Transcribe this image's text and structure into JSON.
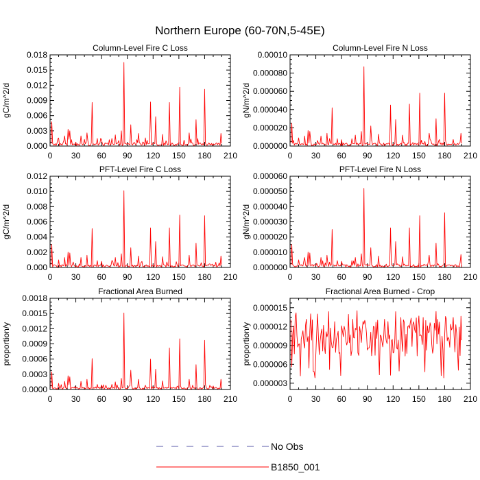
{
  "title": "Northern Europe (60-70N,5-45E)",
  "legend": [
    {
      "label": "No Obs",
      "color": "#5a5aa8",
      "style": "dashed"
    },
    {
      "label": "B1850_001",
      "color": "#ff0000",
      "style": "solid"
    }
  ],
  "chart_data": [
    {
      "type": "line",
      "title": "Column-Level Fire C Loss",
      "ylabel": "gC/m^2/d",
      "x_range": [
        0,
        210
      ],
      "ylim": [
        0,
        0.018
      ],
      "xticks": [
        "0",
        "30",
        "60",
        "90",
        "120",
        "150",
        "180",
        "210"
      ],
      "yticks": [
        "0.000",
        "0.003",
        "0.006",
        "0.009",
        "0.012",
        "0.015",
        "0.018"
      ],
      "series": [
        {
          "name": "B1850_001",
          "color": "#ff0000",
          "x_start": 1,
          "x_step": 1,
          "peaks": [
            [
              2,
              0.0048
            ],
            [
              10,
              0.0016
            ],
            [
              17,
              0.002
            ],
            [
              21,
              0.0033
            ],
            [
              23,
              0.003
            ],
            [
              36,
              0.002
            ],
            [
              43,
              0.0026
            ],
            [
              49,
              0.0086
            ],
            [
              55,
              0.0015
            ],
            [
              60,
              0.0012
            ],
            [
              72,
              0.0015
            ],
            [
              76,
              0.0022
            ],
            [
              83,
              0.003
            ],
            [
              86,
              0.0165
            ],
            [
              94,
              0.0042
            ],
            [
              103,
              0.0025
            ],
            [
              117,
              0.0087
            ],
            [
              123,
              0.0058
            ],
            [
              131,
              0.0023
            ],
            [
              139,
              0.0086
            ],
            [
              151,
              0.0116
            ],
            [
              162,
              0.0026
            ],
            [
              170,
              0.0052
            ],
            [
              180,
              0.0112
            ],
            [
              199,
              0.0025
            ]
          ],
          "base": 0.0006,
          "n": 200
        }
      ]
    },
    {
      "type": "line",
      "title": "Column-Level Fire N Loss",
      "ylabel": "gN/m^2/d",
      "x_range": [
        0,
        210
      ],
      "ylim": [
        0,
        0.0001
      ],
      "xticks": [
        "0",
        "30",
        "60",
        "90",
        "120",
        "150",
        "180",
        "210"
      ],
      "yticks": [
        "0.000000",
        "0.000020",
        "0.000040",
        "0.000060",
        "0.000080",
        "0.00010"
      ],
      "series": [
        {
          "name": "B1850_001",
          "color": "#ff0000",
          "x_start": 1,
          "x_step": 1,
          "peaks": [
            [
              2,
              2.5e-05
            ],
            [
              10,
              9e-06
            ],
            [
              17,
              1.1e-05
            ],
            [
              21,
              1.7e-05
            ],
            [
              23,
              1.6e-05
            ],
            [
              36,
              1.1e-05
            ],
            [
              43,
              1.4e-05
            ],
            [
              49,
              4.2e-05
            ],
            [
              55,
              8e-06
            ],
            [
              60,
              7e-06
            ],
            [
              72,
              8e-06
            ],
            [
              76,
              1.2e-05
            ],
            [
              83,
              1.6e-05
            ],
            [
              86,
              8.7e-05
            ],
            [
              94,
              2.2e-05
            ],
            [
              103,
              1.3e-05
            ],
            [
              117,
              4.5e-05
            ],
            [
              123,
              2.9e-05
            ],
            [
              131,
              1.2e-05
            ],
            [
              139,
              4.6e-05
            ],
            [
              151,
              5.8e-05
            ],
            [
              162,
              1.4e-05
            ],
            [
              170,
              3e-05
            ],
            [
              180,
              5.8e-05
            ],
            [
              199,
              1.4e-05
            ]
          ],
          "base": 3.2e-06,
          "n": 200
        }
      ]
    },
    {
      "type": "line",
      "title": "PFT-Level Fire C Loss",
      "ylabel": "gC/m^2/d",
      "x_range": [
        0,
        210
      ],
      "ylim": [
        0,
        0.012
      ],
      "xticks": [
        "0",
        "30",
        "60",
        "90",
        "120",
        "150",
        "180",
        "210"
      ],
      "yticks": [
        "0.000",
        "0.002",
        "0.004",
        "0.006",
        "0.008",
        "0.010",
        "0.012"
      ],
      "series": [
        {
          "name": "B1850_001",
          "color": "#ff0000",
          "x_start": 1,
          "x_step": 1,
          "peaks": [
            [
              2,
              0.003
            ],
            [
              10,
              0.001
            ],
            [
              17,
              0.0013
            ],
            [
              21,
              0.002
            ],
            [
              23,
              0.0019
            ],
            [
              36,
              0.0013
            ],
            [
              43,
              0.0016
            ],
            [
              49,
              0.0051
            ],
            [
              55,
              0.0009
            ],
            [
              60,
              0.0008
            ],
            [
              72,
              0.0009
            ],
            [
              76,
              0.0013
            ],
            [
              83,
              0.0018
            ],
            [
              86,
              0.0101
            ],
            [
              94,
              0.0026
            ],
            [
              103,
              0.0015
            ],
            [
              117,
              0.0052
            ],
            [
              123,
              0.0034
            ],
            [
              131,
              0.0014
            ],
            [
              139,
              0.0052
            ],
            [
              151,
              0.0069
            ],
            [
              162,
              0.0016
            ],
            [
              170,
              0.0032
            ],
            [
              180,
              0.0068
            ],
            [
              199,
              0.0015
            ]
          ],
          "base": 0.00035,
          "n": 200
        }
      ]
    },
    {
      "type": "line",
      "title": "PFT-Level Fire N Loss",
      "ylabel": "gN/m^2/d",
      "x_range": [
        0,
        210
      ],
      "ylim": [
        0,
        6e-05
      ],
      "xticks": [
        "0",
        "30",
        "60",
        "90",
        "120",
        "150",
        "180",
        "210"
      ],
      "yticks": [
        "0.000000",
        "0.000010",
        "0.000020",
        "0.000030",
        "0.000040",
        "0.000050",
        "0.000060"
      ],
      "series": [
        {
          "name": "B1850_001",
          "color": "#ff0000",
          "x_start": 1,
          "x_step": 1,
          "peaks": [
            [
              2,
              1.5e-05
            ],
            [
              10,
              5e-06
            ],
            [
              17,
              6.5e-06
            ],
            [
              21,
              1e-05
            ],
            [
              23,
              9.5e-06
            ],
            [
              36,
              6.5e-06
            ],
            [
              43,
              8e-06
            ],
            [
              49,
              2.5e-05
            ],
            [
              55,
              4.5e-06
            ],
            [
              60,
              4e-06
            ],
            [
              72,
              4.5e-06
            ],
            [
              76,
              6.5e-06
            ],
            [
              83,
              9e-06
            ],
            [
              86,
              5.2e-05
            ],
            [
              94,
              1.3e-05
            ],
            [
              103,
              7.5e-06
            ],
            [
              117,
              2.6e-05
            ],
            [
              123,
              1.7e-05
            ],
            [
              131,
              7e-06
            ],
            [
              139,
              2.6e-05
            ],
            [
              151,
              3.4e-05
            ],
            [
              162,
              8e-06
            ],
            [
              170,
              1.6e-05
            ],
            [
              180,
              3.6e-05
            ],
            [
              199,
              8.5e-06
            ]
          ],
          "base": 1.8e-06,
          "n": 200
        }
      ]
    },
    {
      "type": "line",
      "title": "Fractional Area Burned",
      "ylabel": "proportion/y",
      "x_range": [
        0,
        210
      ],
      "ylim": [
        0,
        0.0018
      ],
      "xticks": [
        "0",
        "30",
        "60",
        "90",
        "120",
        "150",
        "180",
        "210"
      ],
      "yticks": [
        "0.0000",
        "0.0003",
        "0.0006",
        "0.0009",
        "0.0012",
        "0.0015",
        "0.0018"
      ],
      "series": [
        {
          "name": "B1850_001",
          "color": "#ff0000",
          "x_start": 1,
          "x_step": 1,
          "peaks": [
            [
              2,
              0.00035
            ],
            [
              10,
              0.00012
            ],
            [
              17,
              0.00016
            ],
            [
              21,
              0.00027
            ],
            [
              23,
              0.00025
            ],
            [
              36,
              0.00016
            ],
            [
              43,
              0.0002
            ],
            [
              49,
              0.00061
            ],
            [
              55,
              0.0001
            ],
            [
              60,
              9e-05
            ],
            [
              72,
              0.0001
            ],
            [
              76,
              0.00015
            ],
            [
              83,
              0.00022
            ],
            [
              86,
              0.00151
            ],
            [
              94,
              0.00038
            ],
            [
              103,
              0.0002
            ],
            [
              117,
              0.0006
            ],
            [
              123,
              0.0004
            ],
            [
              131,
              0.00017
            ],
            [
              139,
              0.00082
            ],
            [
              151,
              0.001
            ],
            [
              162,
              0.0002
            ],
            [
              170,
              0.00049
            ],
            [
              180,
              0.00097
            ],
            [
              199,
              0.0002
            ]
          ],
          "base": 4e-05,
          "n": 200
        }
      ]
    },
    {
      "type": "line",
      "title": "Fractional Area Burned - Crop",
      "ylabel": "proportion/y",
      "x_range": [
        0,
        210
      ],
      "ylim": [
        2e-06,
        1.65e-05
      ],
      "xticks": [
        "0",
        "30",
        "60",
        "90",
        "120",
        "150",
        "180",
        "210"
      ],
      "yticks": [
        "0.000003",
        "0.000006",
        "0.000009",
        "0.000012",
        "0.000015"
      ],
      "series": [
        {
          "name": "B1850_001",
          "color": "#ff0000",
          "x_start": 1,
          "x_step": 1,
          "noisy": true,
          "mean": 1.05e-05,
          "amp": 3.2e-06,
          "min": 3.8e-06,
          "max": 1.47e-05,
          "n": 200
        }
      ]
    }
  ]
}
